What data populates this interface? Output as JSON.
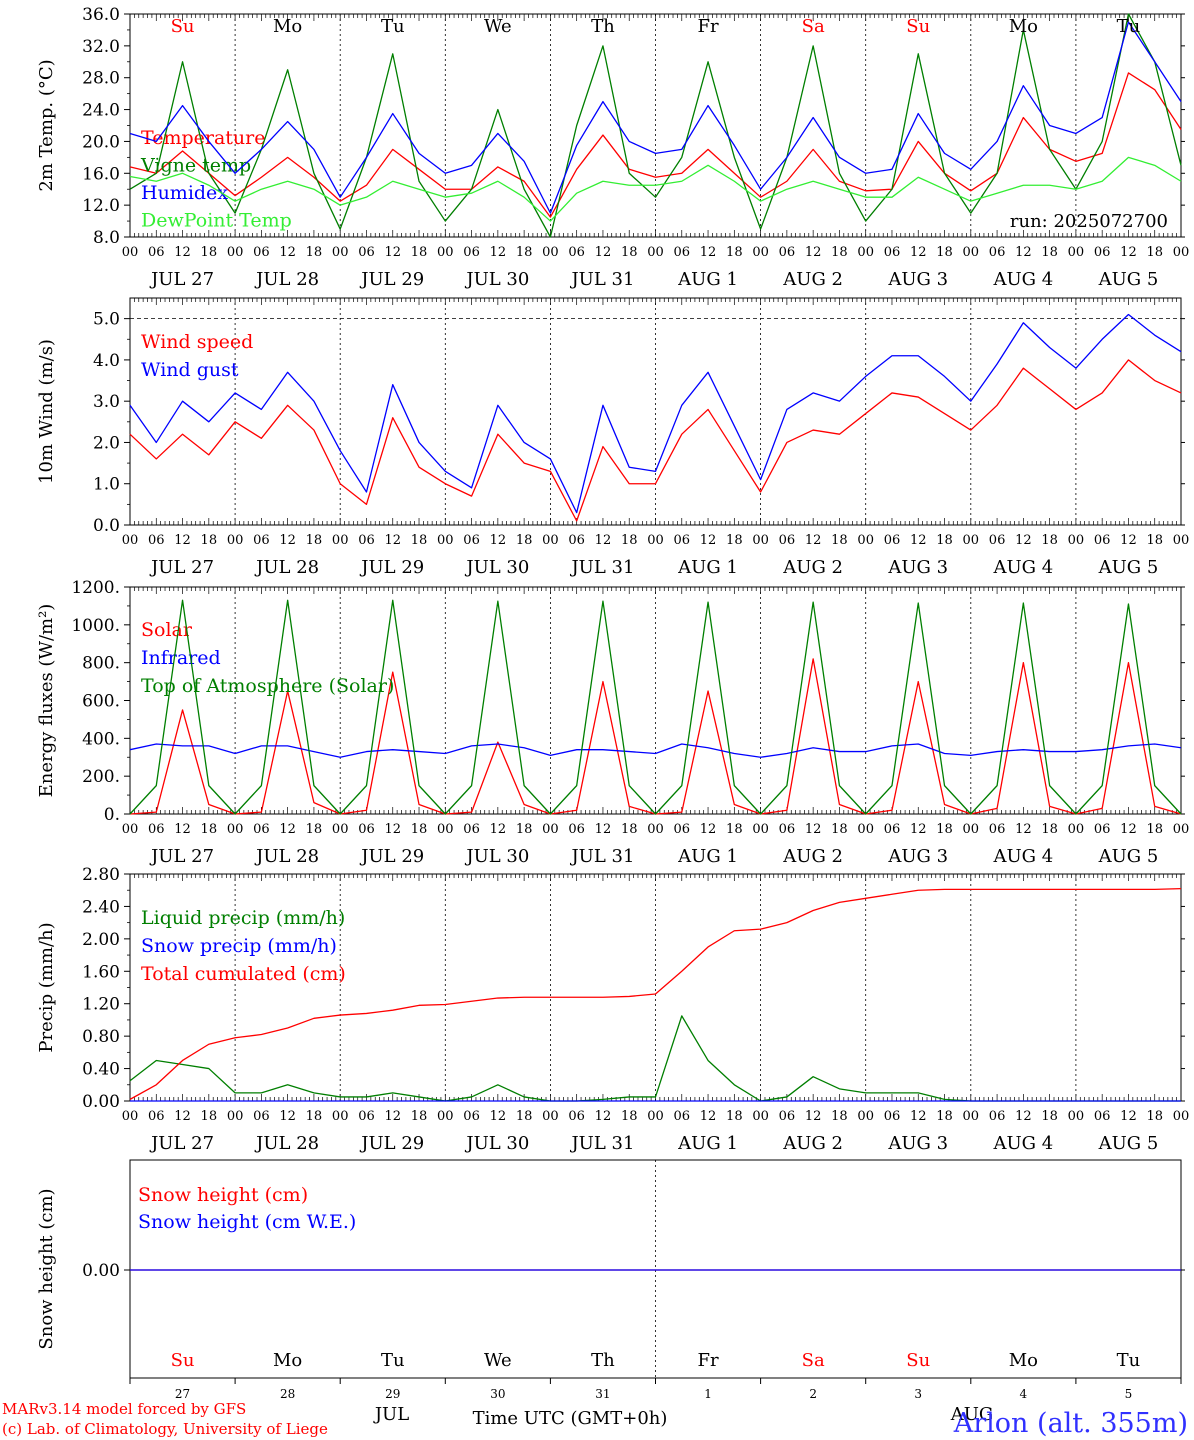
{
  "colors": {
    "red": "#ff0000",
    "green": "#007f00",
    "blue": "#0000ff",
    "lightgreen": "#33ee33",
    "black": "#000000"
  },
  "run_label": "run: 2025072700",
  "day_labels": [
    {
      "text": "Su",
      "color": "#ff0000"
    },
    {
      "text": "Mo",
      "color": "#000000"
    },
    {
      "text": "Tu",
      "color": "#000000"
    },
    {
      "text": "We",
      "color": "#000000"
    },
    {
      "text": "Th",
      "color": "#000000"
    },
    {
      "text": "Fr",
      "color": "#000000"
    },
    {
      "text": "Sa",
      "color": "#ff0000"
    },
    {
      "text": "Su",
      "color": "#ff0000"
    },
    {
      "text": "Mo",
      "color": "#000000"
    },
    {
      "text": "Tu",
      "color": "#000000"
    }
  ],
  "hour_labels": [
    "00",
    "06",
    "12",
    "18"
  ],
  "date_labels": [
    "JUL 27",
    "JUL 28",
    "JUL 29",
    "JUL 30",
    "JUL 31",
    "AUG  1",
    "AUG  2",
    "AUG  3",
    "AUG  4",
    "AUG  5"
  ],
  "bottom_axis": {
    "day_numbers": [
      "27",
      "28",
      "29",
      "30",
      "31",
      "1",
      "2",
      "3",
      "4",
      "5"
    ],
    "months": [
      "JUL",
      "AUG"
    ],
    "title": "Time UTC (GMT+0h)"
  },
  "credits": [
    "MARv3.14 model forced by GFS",
    "(c) Lab. of Climatology, University of Liege"
  ],
  "station": "Arlon (alt. 355m)",
  "chart_data": [
    {
      "type": "line",
      "ylabel": "2m Temp. (°C)",
      "ylim": [
        8,
        36
      ],
      "yticks": [
        "8.0",
        "12.0",
        "16.0",
        "20.0",
        "24.0",
        "28.0",
        "32.0",
        "36.0"
      ],
      "x_hours": [
        0,
        6,
        12,
        18,
        24,
        30,
        36,
        42,
        48,
        54,
        60,
        66,
        72,
        78,
        84,
        90,
        96,
        102,
        108,
        114,
        120,
        126,
        132,
        138,
        144,
        150,
        156,
        162,
        168,
        174,
        180,
        186,
        192,
        198,
        204,
        210,
        216,
        222,
        228,
        234,
        240
      ],
      "series": [
        {
          "name": "Temperature",
          "color": "#ff0000",
          "values": [
            16.8,
            16,
            18.8,
            16,
            13.2,
            15.5,
            18,
            15.5,
            12.5,
            14.5,
            19,
            16.5,
            14,
            14,
            16.8,
            15,
            10.5,
            16.5,
            20.8,
            16.5,
            15.5,
            16,
            19,
            16,
            13,
            15,
            19,
            15,
            13.8,
            14,
            20,
            16,
            13.8,
            16,
            23,
            19,
            17.5,
            18.5,
            28.6,
            26.5,
            21.5
          ]
        },
        {
          "name": "Vigne temp",
          "color": "#007f00",
          "values": [
            14,
            16,
            30,
            16,
            11,
            19,
            29,
            16,
            9,
            18,
            31,
            15,
            10,
            14,
            24,
            14,
            8,
            22,
            32,
            16,
            13,
            18,
            30,
            18,
            9,
            18,
            32,
            16,
            10,
            14,
            31,
            16,
            11,
            16,
            34,
            19,
            14,
            20,
            36,
            30,
            17
          ]
        },
        {
          "name": "Humidex",
          "color": "#0000ff",
          "values": [
            21,
            20,
            24.5,
            20,
            16,
            19,
            22.5,
            19,
            13,
            18,
            23.5,
            18.5,
            16,
            17,
            21,
            17.5,
            11,
            19.5,
            25,
            20,
            18.5,
            19,
            24.5,
            19.5,
            14,
            18,
            23,
            18,
            16,
            16.5,
            23.5,
            18.5,
            16.5,
            20,
            27,
            22,
            21,
            23,
            35,
            30,
            25
          ]
        },
        {
          "name": "DewPoint Temp",
          "color": "#33ee33",
          "values": [
            15.6,
            15,
            16,
            14.5,
            12.5,
            14,
            15,
            14,
            12,
            13,
            15,
            14,
            13,
            13.5,
            15,
            13,
            10,
            13.5,
            15,
            14.5,
            14.5,
            15,
            17,
            15,
            12.5,
            14,
            15,
            14,
            13,
            13,
            15.5,
            14,
            12.5,
            13.5,
            14.5,
            14.5,
            14,
            15,
            18,
            17,
            15
          ]
        }
      ]
    },
    {
      "type": "line",
      "ylabel": "10m Wind (m/s)",
      "ylim": [
        0,
        5.5
      ],
      "yticks": [
        "0.0",
        "1.0",
        "2.0",
        "3.0",
        "4.0",
        "5.0"
      ],
      "x_hours": [
        0,
        6,
        12,
        18,
        24,
        30,
        36,
        42,
        48,
        54,
        60,
        66,
        72,
        78,
        84,
        90,
        96,
        102,
        108,
        114,
        120,
        126,
        132,
        138,
        144,
        150,
        156,
        162,
        168,
        174,
        180,
        186,
        192,
        198,
        204,
        210,
        216,
        222,
        228,
        234,
        240
      ],
      "series": [
        {
          "name": "Wind speed",
          "color": "#ff0000",
          "values": [
            2.2,
            1.6,
            2.2,
            1.7,
            2.5,
            2.1,
            2.9,
            2.3,
            1.0,
            0.5,
            2.6,
            1.4,
            1.0,
            0.7,
            2.2,
            1.5,
            1.3,
            0.1,
            1.9,
            1.0,
            1.0,
            2.2,
            2.8,
            1.8,
            0.8,
            2.0,
            2.3,
            2.2,
            2.7,
            3.2,
            3.1,
            2.7,
            2.3,
            2.9,
            3.8,
            3.3,
            2.8,
            3.2,
            4.0,
            3.5,
            3.2
          ]
        },
        {
          "name": "Wind gust",
          "color": "#0000ff",
          "values": [
            2.9,
            2.0,
            3.0,
            2.5,
            3.2,
            2.8,
            3.7,
            3.0,
            1.8,
            0.8,
            3.4,
            2.0,
            1.3,
            0.9,
            2.9,
            2.0,
            1.6,
            0.3,
            2.9,
            1.4,
            1.3,
            2.9,
            3.7,
            2.4,
            1.1,
            2.8,
            3.2,
            3.0,
            3.6,
            4.1,
            4.1,
            3.6,
            3.0,
            3.9,
            4.9,
            4.3,
            3.8,
            4.5,
            5.1,
            4.6,
            4.2
          ]
        }
      ]
    },
    {
      "type": "line",
      "ylabel": "Energy fluxes (W/m²)",
      "ylim": [
        0,
        1200
      ],
      "yticks": [
        "0.",
        "200.",
        "400.",
        "600.",
        "800.",
        "1000.",
        "1200."
      ],
      "x_hours": [
        0,
        6,
        12,
        18,
        24,
        30,
        36,
        42,
        48,
        54,
        60,
        66,
        72,
        78,
        84,
        90,
        96,
        102,
        108,
        114,
        120,
        126,
        132,
        138,
        144,
        150,
        156,
        162,
        168,
        174,
        180,
        186,
        192,
        198,
        204,
        210,
        216,
        222,
        228,
        234,
        240
      ],
      "series": [
        {
          "name": "Solar",
          "color": "#ff0000",
          "values": [
            0,
            10,
            550,
            50,
            0,
            10,
            650,
            60,
            0,
            20,
            750,
            50,
            0,
            10,
            380,
            50,
            0,
            20,
            700,
            40,
            0,
            10,
            650,
            50,
            0,
            20,
            820,
            50,
            0,
            20,
            700,
            50,
            0,
            30,
            800,
            40,
            0,
            30,
            800,
            40,
            0
          ]
        },
        {
          "name": "Infrared",
          "color": "#0000ff",
          "values": [
            340,
            370,
            360,
            360,
            320,
            360,
            360,
            330,
            300,
            330,
            340,
            330,
            320,
            360,
            370,
            350,
            310,
            340,
            340,
            330,
            320,
            370,
            350,
            320,
            300,
            320,
            350,
            330,
            330,
            360,
            370,
            320,
            310,
            330,
            340,
            330,
            330,
            340,
            360,
            370,
            350
          ]
        },
        {
          "name": "Top of Atmosphere (Solar)",
          "color": "#007f00",
          "values": [
            0,
            150,
            1130,
            150,
            0,
            150,
            1130,
            150,
            0,
            150,
            1130,
            150,
            0,
            150,
            1125,
            150,
            0,
            150,
            1125,
            150,
            0,
            150,
            1120,
            150,
            0,
            150,
            1120,
            150,
            0,
            150,
            1115,
            150,
            0,
            150,
            1115,
            150,
            0,
            150,
            1110,
            150,
            0
          ]
        }
      ]
    },
    {
      "type": "line",
      "ylabel": "Precip (mm/h)",
      "ylim": [
        0,
        2.8
      ],
      "yticks": [
        "0.00",
        "0.40",
        "0.80",
        "1.20",
        "1.60",
        "2.00",
        "2.40",
        "2.80"
      ],
      "x_hours": [
        0,
        6,
        12,
        18,
        24,
        30,
        36,
        42,
        48,
        54,
        60,
        66,
        72,
        78,
        84,
        90,
        96,
        102,
        108,
        114,
        120,
        126,
        132,
        138,
        144,
        150,
        156,
        162,
        168,
        174,
        180,
        186,
        192,
        198,
        204,
        210,
        216,
        222,
        228,
        234,
        240
      ],
      "series": [
        {
          "name": "Liquid precip (mm/h)",
          "color": "#007f00",
          "values": [
            0.25,
            0.5,
            0.45,
            0.4,
            0.1,
            0.1,
            0.2,
            0.1,
            0.05,
            0.05,
            0.1,
            0.05,
            0.0,
            0.05,
            0.2,
            0.05,
            0.0,
            0.0,
            0.02,
            0.05,
            0.05,
            1.05,
            0.5,
            0.2,
            0.0,
            0.05,
            0.3,
            0.15,
            0.1,
            0.1,
            0.1,
            0.02,
            0.0,
            0.0,
            0.0,
            0.0,
            0.0,
            0.0,
            0.0,
            0.0,
            0.0
          ]
        },
        {
          "name": "Snow precip (mm/h)",
          "color": "#0000ff",
          "values": [
            0,
            0,
            0,
            0,
            0,
            0,
            0,
            0,
            0,
            0,
            0,
            0,
            0,
            0,
            0,
            0,
            0,
            0,
            0,
            0,
            0,
            0,
            0,
            0,
            0,
            0,
            0,
            0,
            0,
            0,
            0,
            0,
            0,
            0,
            0,
            0,
            0,
            0,
            0,
            0,
            0
          ]
        },
        {
          "name": "Total cumulated (cm)",
          "color": "#ff0000",
          "values": [
            0.02,
            0.2,
            0.5,
            0.7,
            0.78,
            0.82,
            0.9,
            1.02,
            1.06,
            1.08,
            1.12,
            1.18,
            1.19,
            1.23,
            1.27,
            1.28,
            1.28,
            1.28,
            1.28,
            1.29,
            1.32,
            1.6,
            1.9,
            2.1,
            2.12,
            2.2,
            2.35,
            2.45,
            2.5,
            2.55,
            2.6,
            2.61,
            2.61,
            2.61,
            2.61,
            2.61,
            2.61,
            2.61,
            2.61,
            2.61,
            2.62
          ]
        }
      ]
    },
    {
      "type": "line",
      "ylabel": "Snow height (cm)",
      "yticks": [
        "0.00"
      ],
      "x_hours": [
        0,
        240
      ],
      "series": [
        {
          "name": "Snow height (cm)",
          "color": "#ff0000",
          "values": [
            0,
            0
          ]
        },
        {
          "name": "Snow height (cm W.E.)",
          "color": "#0000ff",
          "values": [
            0,
            0
          ]
        }
      ]
    }
  ]
}
